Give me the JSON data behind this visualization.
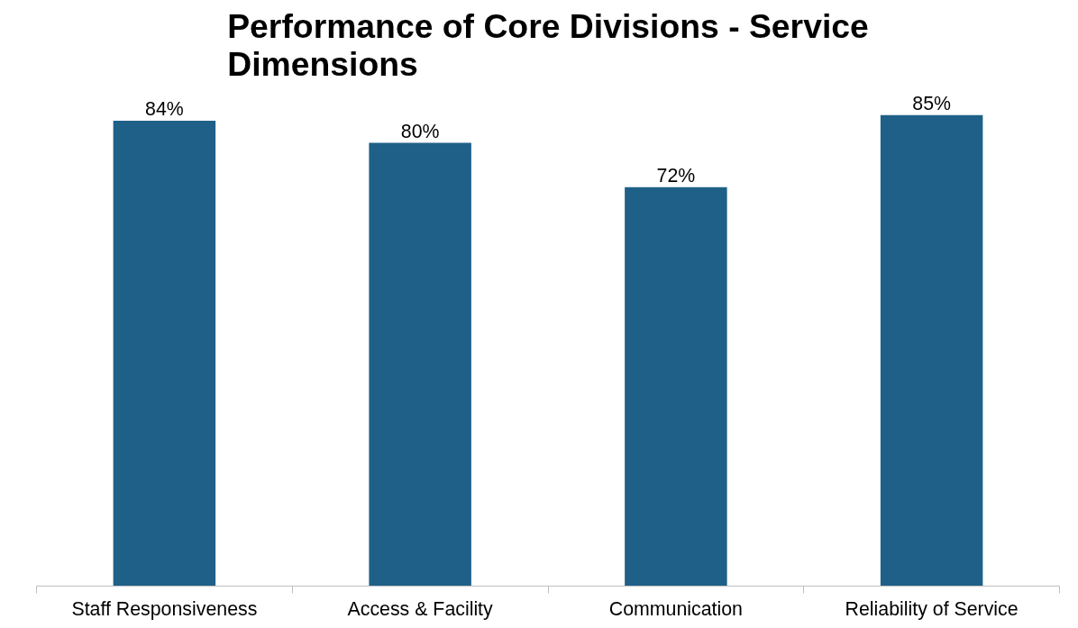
{
  "chart_data": {
    "type": "bar",
    "title": "Performance of Core Divisions - Service Dimensions",
    "categories": [
      "Staff Responsiveness",
      "Access & Facility",
      "Communication",
      "Reliability of Service"
    ],
    "values": [
      84,
      80,
      72,
      85
    ],
    "value_labels": [
      "84%",
      "80%",
      "72%",
      "85%"
    ],
    "color": "#1f6088",
    "tick_labels": "x",
    "grid": false
  }
}
